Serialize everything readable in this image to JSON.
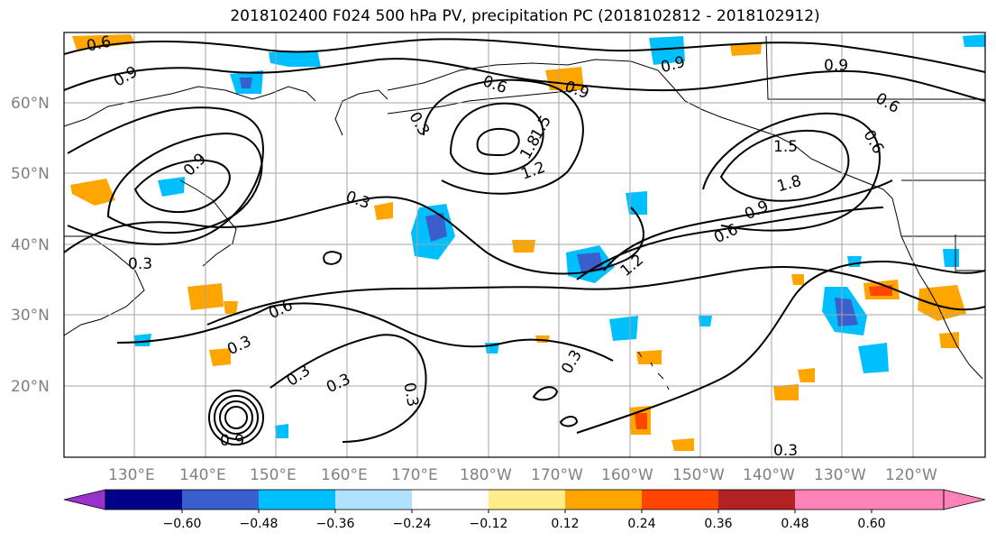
{
  "title": "2018102400 F024 500 hPa PV, precipitation PC (2018102812 - 2018102912)",
  "lat_labels": [
    "60°N",
    "50°N",
    "40°N",
    "30°N",
    "20°N"
  ],
  "lon_labels": [
    "130°E",
    "140°E",
    "150°E",
    "160°E",
    "170°E",
    "180°W",
    "170°W",
    "160°W",
    "150°W",
    "140°W",
    "130°W",
    "120°W"
  ],
  "contour_labels": [
    "0.6",
    "0.9",
    "0.9",
    "0.6",
    "0.9",
    "0.9",
    "0.9",
    "0.6",
    "0.6",
    "0.3",
    "1.5",
    "1.8",
    "1.2",
    "1.5",
    "1.8",
    "0.9",
    "0.6",
    "0.3",
    "0.3",
    "1.2",
    "0.6",
    "0.3",
    "0.3",
    "0.3",
    "0.3",
    "0.3",
    "0.9",
    "0.3"
  ],
  "colorbar": {
    "ticks": [
      "−0.60",
      "−0.48",
      "−0.36",
      "−0.24",
      "−0.12",
      "0.12",
      "0.24",
      "0.36",
      "0.48",
      "0.60"
    ],
    "colors": [
      "#9932cc",
      "#00008b",
      "#3a5fcd",
      "#00bfff",
      "#b0e2ff",
      "#ffffff",
      "#ffec8b",
      "#ffa500",
      "#ff4500",
      "#b22222",
      "#ff83b8"
    ]
  }
}
